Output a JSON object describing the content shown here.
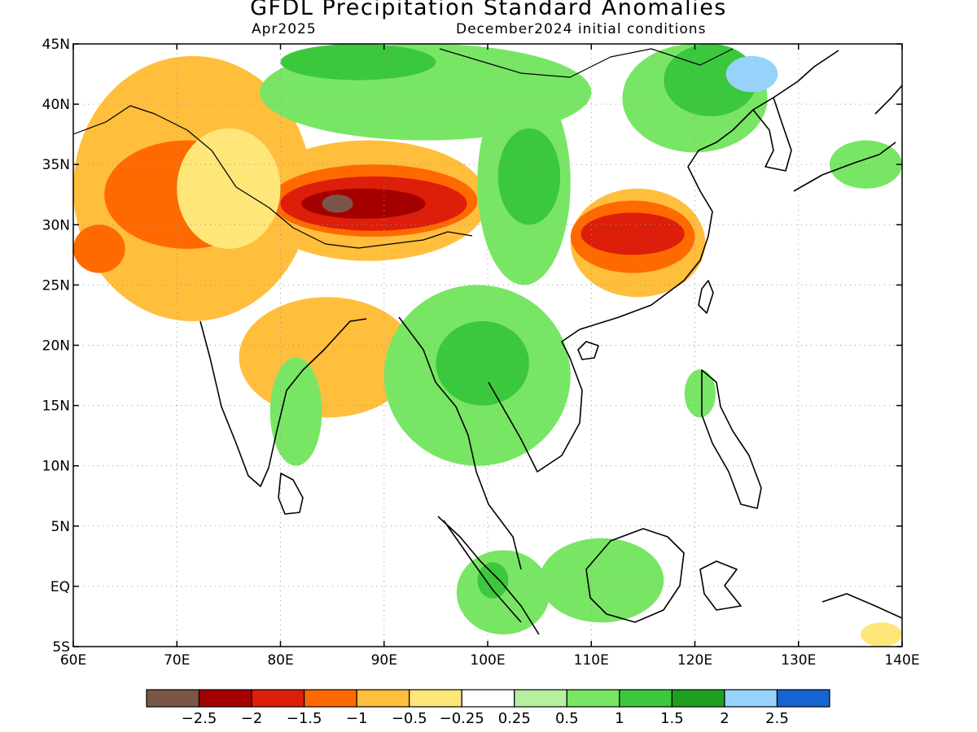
{
  "title": "GFDL Precipitation Standard Anomalies",
  "valid_month": "Apr2025",
  "init_conditions": "December2024 initial conditions",
  "map_extent": {
    "lon_min": 60,
    "lon_max": 140,
    "lat_min": -5,
    "lat_max": 45
  },
  "lat_labels": [
    {
      "value": 45,
      "text": "45N"
    },
    {
      "value": 40,
      "text": "40N"
    },
    {
      "value": 35,
      "text": "35N"
    },
    {
      "value": 30,
      "text": "30N"
    },
    {
      "value": 25,
      "text": "25N"
    },
    {
      "value": 20,
      "text": "20N"
    },
    {
      "value": 15,
      "text": "15N"
    },
    {
      "value": 10,
      "text": "10N"
    },
    {
      "value": 5,
      "text": "5N"
    },
    {
      "value": 0,
      "text": "EQ"
    },
    {
      "value": -5,
      "text": "5S"
    }
  ],
  "lon_labels": [
    {
      "value": 60,
      "text": "60E"
    },
    {
      "value": 70,
      "text": "70E"
    },
    {
      "value": 80,
      "text": "80E"
    },
    {
      "value": 90,
      "text": "90E"
    },
    {
      "value": 100,
      "text": "100E"
    },
    {
      "value": 110,
      "text": "110E"
    },
    {
      "value": 120,
      "text": "120E"
    },
    {
      "value": 130,
      "text": "130E"
    },
    {
      "value": 140,
      "text": "140E"
    }
  ],
  "colorbar": {
    "colors": [
      "#7a5548",
      "#a50000",
      "#dc1e0a",
      "#ff6a00",
      "#ffbe3c",
      "#ffe678",
      "#ffffff",
      "#b4f0a0",
      "#78e664",
      "#3cc83c",
      "#1ea01e",
      "#96d2fa",
      "#1464d2"
    ],
    "labels": [
      "−2.5",
      "−2",
      "−1.5",
      "−1",
      "−0.5",
      "−0.25",
      "0.25",
      "0.5",
      "1",
      "1.5",
      "2",
      "2.5"
    ]
  },
  "anomaly_regions": [
    {
      "color": "#ffbe3c",
      "lon": [
        60,
        83
      ],
      "lat": [
        22,
        44
      ]
    },
    {
      "color": "#ffbe3c",
      "lon": [
        76,
        93
      ],
      "lat": [
        14,
        24
      ]
    },
    {
      "color": "#ff6a00",
      "lon": [
        63,
        79
      ],
      "lat": [
        28,
        37
      ]
    },
    {
      "color": "#ff6a00",
      "lon": [
        60,
        65
      ],
      "lat": [
        26,
        30
      ]
    },
    {
      "color": "#ff6a00",
      "lon": [
        68,
        74
      ],
      "lat": [
        31,
        35
      ]
    },
    {
      "color": "#ffbe3c",
      "lon": [
        77,
        100
      ],
      "lat": [
        27,
        37
      ]
    },
    {
      "color": "#ff6a00",
      "lon": [
        79,
        99
      ],
      "lat": [
        29,
        35
      ]
    },
    {
      "color": "#dc1e0a",
      "lon": [
        80,
        98
      ],
      "lat": [
        29.5,
        34
      ]
    },
    {
      "color": "#a50000",
      "lon": [
        82,
        94
      ],
      "lat": [
        30.5,
        33
      ]
    },
    {
      "color": "#7a5548",
      "lon": [
        84,
        87
      ],
      "lat": [
        31,
        32.5
      ]
    },
    {
      "color": "#ffbe3c",
      "lon": [
        108,
        121
      ],
      "lat": [
        24,
        33
      ]
    },
    {
      "color": "#ff6a00",
      "lon": [
        108,
        120
      ],
      "lat": [
        26,
        32
      ]
    },
    {
      "color": "#dc1e0a",
      "lon": [
        109,
        119
      ],
      "lat": [
        27.5,
        31
      ]
    },
    {
      "color": "#ffe678",
      "lon": [
        70,
        80
      ],
      "lat": [
        28,
        38
      ]
    },
    {
      "color": "#ffe678",
      "lon": [
        84,
        95
      ],
      "lat": [
        38,
        42
      ]
    },
    {
      "color": "#78e664",
      "lon": [
        78,
        110
      ],
      "lat": [
        37,
        45
      ]
    },
    {
      "color": "#3cc83c",
      "lon": [
        80,
        95
      ],
      "lat": [
        42,
        45
      ]
    },
    {
      "color": "#78e664",
      "lon": [
        99,
        108
      ],
      "lat": [
        25,
        42
      ]
    },
    {
      "color": "#3cc83c",
      "lon": [
        101,
        107
      ],
      "lat": [
        30,
        38
      ]
    },
    {
      "color": "#78e664",
      "lon": [
        113,
        127
      ],
      "lat": [
        36,
        45
      ]
    },
    {
      "color": "#3cc83c",
      "lon": [
        117,
        126
      ],
      "lat": [
        39,
        45
      ]
    },
    {
      "color": "#96d2fa",
      "lon": [
        123,
        128
      ],
      "lat": [
        41,
        44
      ]
    },
    {
      "color": "#78e664",
      "lon": [
        90,
        108
      ],
      "lat": [
        10,
        25
      ]
    },
    {
      "color": "#3cc83c",
      "lon": [
        95,
        104
      ],
      "lat": [
        15,
        22
      ]
    },
    {
      "color": "#78e664",
      "lon": [
        105,
        117
      ],
      "lat": [
        -3,
        4
      ]
    },
    {
      "color": "#78e664",
      "lon": [
        97,
        106
      ],
      "lat": [
        -4,
        3
      ]
    },
    {
      "color": "#3cc83c",
      "lon": [
        99,
        102
      ],
      "lat": [
        -1,
        2
      ]
    },
    {
      "color": "#78e664",
      "lon": [
        79,
        84
      ],
      "lat": [
        10,
        19
      ]
    },
    {
      "color": "#78e664",
      "lon": [
        119,
        122
      ],
      "lat": [
        14,
        18
      ]
    },
    {
      "color": "#78e664",
      "lon": [
        133,
        140
      ],
      "lat": [
        33,
        37
      ]
    },
    {
      "color": "#ffe678",
      "lon": [
        136,
        140
      ],
      "lat": [
        -5,
        -3
      ]
    }
  ]
}
